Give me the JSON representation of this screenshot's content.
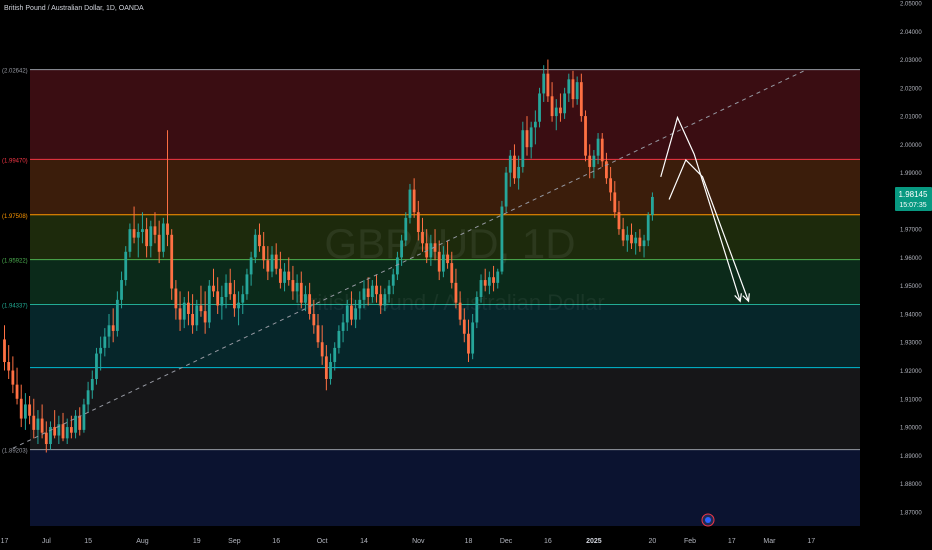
{
  "symbol": {
    "title": "British Pound / Australian Dollar, 1D, OANDA",
    "watermark_main": "GBPAUD, 1D",
    "watermark_sub": "British Pound / Australian Dollar"
  },
  "price_tag": {
    "price": "1.98145",
    "countdown": "15:07:35",
    "color": "#089981"
  },
  "chart_data": {
    "type": "candlestick",
    "y_axis": {
      "min": 1.865,
      "max": 2.05,
      "ticks": [
        "2.05000",
        "2.04000",
        "2.03000",
        "2.02000",
        "2.01000",
        "2.00000",
        "1.99000",
        "1.98000",
        "1.97000",
        "1.96000",
        "1.95000",
        "1.94000",
        "1.93000",
        "1.92000",
        "1.91000",
        "1.90000",
        "1.89000",
        "1.88000",
        "1.87000"
      ]
    },
    "x_axis": {
      "ticks": [
        {
          "label": "17",
          "index": 0
        },
        {
          "label": "Jul",
          "index": 10
        },
        {
          "label": "15",
          "index": 20
        },
        {
          "label": "Aug",
          "index": 33
        },
        {
          "label": "19",
          "index": 46
        },
        {
          "label": "Sep",
          "index": 55
        },
        {
          "label": "16",
          "index": 65
        },
        {
          "label": "Oct",
          "index": 76
        },
        {
          "label": "14",
          "index": 86
        },
        {
          "label": "Nov",
          "index": 99
        },
        {
          "label": "18",
          "index": 111
        },
        {
          "label": "Dec",
          "index": 120
        },
        {
          "label": "16",
          "index": 130
        },
        {
          "label": "2025",
          "index": 141
        },
        {
          "label": "20",
          "index": 155
        },
        {
          "label": "Feb",
          "index": 164
        },
        {
          "label": "17",
          "index": 174
        },
        {
          "label": "Mar",
          "index": 183
        },
        {
          "label": "17",
          "index": 193
        }
      ]
    },
    "fib_levels": [
      {
        "value": 2.02642,
        "label": "(2.02642)",
        "fill": "#3a0d12",
        "line": "#9598a1"
      },
      {
        "value": 1.9947,
        "label": "(1.99470)",
        "fill": "#3b1d0b",
        "line": "#f23645"
      },
      {
        "value": 1.97508,
        "label": "(1.97508)",
        "fill": "#1d2a0c",
        "line": "#ff9800"
      },
      {
        "value": 1.95922,
        "label": "(1.95922)",
        "fill": "#0b2a1a",
        "line": "#4caf50"
      },
      {
        "value": 1.94337,
        "label": "(1.94337)",
        "fill": "#06262a",
        "line": "#22ab94"
      },
      {
        "value": 1.921,
        "label": "",
        "fill": "#161618",
        "line": "#00bcd4"
      },
      {
        "value": 1.89203,
        "label": "(1.89203)",
        "fill": "#0b1330",
        "line": "#9598a1"
      }
    ],
    "trendline": {
      "start": {
        "index": 2,
        "value": 1.8925
      },
      "end": {
        "index": 192,
        "value": 2.0265
      }
    },
    "projection_arrows": [
      {
        "points": [
          [
            157,
            1.9885
          ],
          [
            161,
            2.0095
          ],
          [
            165,
            1.9965
          ],
          [
            176,
            1.9445
          ]
        ]
      },
      {
        "points": [
          [
            159,
            1.9805
          ],
          [
            163,
            1.9945
          ],
          [
            167,
            1.9885
          ],
          [
            178,
            1.9445
          ]
        ]
      }
    ],
    "ohlc": [
      [
        1.931,
        1.936,
        1.92,
        1.923
      ],
      [
        1.923,
        1.929,
        1.917,
        1.92
      ],
      [
        1.92,
        1.925,
        1.912,
        1.915
      ],
      [
        1.915,
        1.921,
        1.908,
        1.91
      ],
      [
        1.91,
        1.915,
        1.9,
        1.903
      ],
      [
        1.903,
        1.912,
        1.899,
        1.908
      ],
      [
        1.908,
        1.911,
        1.901,
        1.904
      ],
      [
        1.904,
        1.91,
        1.896,
        1.899
      ],
      [
        1.899,
        1.906,
        1.894,
        1.903
      ],
      [
        1.903,
        1.908,
        1.896,
        1.898
      ],
      [
        1.898,
        1.902,
        1.891,
        1.894
      ],
      [
        1.894,
        1.902,
        1.892,
        1.9
      ],
      [
        1.9,
        1.906,
        1.896,
        1.897
      ],
      [
        1.897,
        1.904,
        1.894,
        1.901
      ],
      [
        1.901,
        1.905,
        1.895,
        1.896
      ],
      [
        1.896,
        1.903,
        1.894,
        1.9
      ],
      [
        1.9,
        1.904,
        1.896,
        1.898
      ],
      [
        1.898,
        1.906,
        1.896,
        1.904
      ],
      [
        1.904,
        1.907,
        1.897,
        1.899
      ],
      [
        1.899,
        1.91,
        1.898,
        1.908
      ],
      [
        1.908,
        1.916,
        1.905,
        1.913
      ],
      [
        1.913,
        1.92,
        1.91,
        1.917
      ],
      [
        1.917,
        1.928,
        1.915,
        1.926
      ],
      [
        1.926,
        1.932,
        1.92,
        1.928
      ],
      [
        1.928,
        1.935,
        1.925,
        1.932
      ],
      [
        1.932,
        1.94,
        1.928,
        1.936
      ],
      [
        1.936,
        1.942,
        1.93,
        1.934
      ],
      [
        1.934,
        1.948,
        1.932,
        1.945
      ],
      [
        1.945,
        1.955,
        1.942,
        1.952
      ],
      [
        1.952,
        1.964,
        1.95,
        1.962
      ],
      [
        1.962,
        1.972,
        1.96,
        1.97
      ],
      [
        1.97,
        1.978,
        1.965,
        1.967
      ],
      [
        1.967,
        1.972,
        1.96,
        1.969
      ],
      [
        1.969,
        1.976,
        1.965,
        1.97
      ],
      [
        1.97,
        1.974,
        1.96,
        1.964
      ],
      [
        1.964,
        1.973,
        1.96,
        1.971
      ],
      [
        1.971,
        1.976,
        1.965,
        1.968
      ],
      [
        1.968,
        1.973,
        1.958,
        1.962
      ],
      [
        1.962,
        1.974,
        1.96,
        1.972
      ],
      [
        1.972,
        2.005,
        1.964,
        1.968
      ],
      [
        1.968,
        1.97,
        1.945,
        1.949
      ],
      [
        1.949,
        1.952,
        1.938,
        1.942
      ],
      [
        1.942,
        1.948,
        1.934,
        1.938
      ],
      [
        1.938,
        1.946,
        1.935,
        1.944
      ],
      [
        1.944,
        1.948,
        1.936,
        1.94
      ],
      [
        1.94,
        1.947,
        1.933,
        1.936
      ],
      [
        1.936,
        1.945,
        1.934,
        1.943
      ],
      [
        1.943,
        1.95,
        1.939,
        1.941
      ],
      [
        1.941,
        1.948,
        1.933,
        1.937
      ],
      [
        1.937,
        1.952,
        1.935,
        1.95
      ],
      [
        1.95,
        1.956,
        1.946,
        1.948
      ],
      [
        1.948,
        1.953,
        1.94,
        1.943
      ],
      [
        1.943,
        1.95,
        1.938,
        1.946
      ],
      [
        1.946,
        1.954,
        1.942,
        1.951
      ],
      [
        1.951,
        1.956,
        1.945,
        1.947
      ],
      [
        1.947,
        1.952,
        1.939,
        1.942
      ],
      [
        1.942,
        1.948,
        1.936,
        1.944
      ],
      [
        1.944,
        1.95,
        1.94,
        1.947
      ],
      [
        1.947,
        1.956,
        1.945,
        1.954
      ],
      [
        1.954,
        1.962,
        1.95,
        1.96
      ],
      [
        1.96,
        1.97,
        1.958,
        1.968
      ],
      [
        1.968,
        1.972,
        1.962,
        1.964
      ],
      [
        1.964,
        1.969,
        1.956,
        1.959
      ],
      [
        1.959,
        1.964,
        1.952,
        1.955
      ],
      [
        1.955,
        1.964,
        1.953,
        1.961
      ],
      [
        1.961,
        1.965,
        1.954,
        1.956
      ],
      [
        1.956,
        1.962,
        1.949,
        1.951
      ],
      [
        1.951,
        1.958,
        1.948,
        1.955
      ],
      [
        1.955,
        1.96,
        1.95,
        1.952
      ],
      [
        1.952,
        1.957,
        1.945,
        1.948
      ],
      [
        1.948,
        1.954,
        1.944,
        1.951
      ],
      [
        1.951,
        1.955,
        1.942,
        1.944
      ],
      [
        1.944,
        1.95,
        1.941,
        1.947
      ],
      [
        1.947,
        1.951,
        1.938,
        1.94
      ],
      [
        1.94,
        1.945,
        1.933,
        1.936
      ],
      [
        1.936,
        1.94,
        1.928,
        1.93
      ],
      [
        1.93,
        1.936,
        1.922,
        1.925
      ],
      [
        1.925,
        1.929,
        1.913,
        1.917
      ],
      [
        1.917,
        1.926,
        1.915,
        1.923
      ],
      [
        1.923,
        1.93,
        1.92,
        1.928
      ],
      [
        1.928,
        1.936,
        1.926,
        1.934
      ],
      [
        1.934,
        1.94,
        1.93,
        1.937
      ],
      [
        1.937,
        1.945,
        1.934,
        1.943
      ],
      [
        1.943,
        1.948,
        1.936,
        1.938
      ],
      [
        1.938,
        1.945,
        1.935,
        1.942
      ],
      [
        1.942,
        1.948,
        1.938,
        1.945
      ],
      [
        1.945,
        1.952,
        1.942,
        1.949
      ],
      [
        1.949,
        1.953,
        1.943,
        1.946
      ],
      [
        1.946,
        1.952,
        1.944,
        1.95
      ],
      [
        1.95,
        1.954,
        1.944,
        1.947
      ],
      [
        1.947,
        1.95,
        1.94,
        1.943
      ],
      [
        1.943,
        1.949,
        1.941,
        1.947
      ],
      [
        1.947,
        1.952,
        1.944,
        1.95
      ],
      [
        1.95,
        1.956,
        1.947,
        1.954
      ],
      [
        1.954,
        1.962,
        1.952,
        1.96
      ],
      [
        1.96,
        1.968,
        1.957,
        1.966
      ],
      [
        1.966,
        1.976,
        1.964,
        1.974
      ],
      [
        1.974,
        1.986,
        1.972,
        1.984
      ],
      [
        1.984,
        1.988,
        1.974,
        1.976
      ],
      [
        1.976,
        1.98,
        1.966,
        1.969
      ],
      [
        1.969,
        1.974,
        1.962,
        1.965
      ],
      [
        1.965,
        1.97,
        1.958,
        1.96
      ],
      [
        1.96,
        1.968,
        1.957,
        1.965
      ],
      [
        1.965,
        1.97,
        1.959,
        1.962
      ],
      [
        1.962,
        1.966,
        1.952,
        1.955
      ],
      [
        1.955,
        1.964,
        1.953,
        1.961
      ],
      [
        1.961,
        1.966,
        1.956,
        1.958
      ],
      [
        1.958,
        1.962,
        1.949,
        1.951
      ],
      [
        1.951,
        1.956,
        1.942,
        1.944
      ],
      [
        1.944,
        1.948,
        1.936,
        1.938
      ],
      [
        1.938,
        1.942,
        1.93,
        1.933
      ],
      [
        1.933,
        1.938,
        1.923,
        1.926
      ],
      [
        1.926,
        1.94,
        1.924,
        1.937
      ],
      [
        1.937,
        1.948,
        1.935,
        1.946
      ],
      [
        1.946,
        1.954,
        1.944,
        1.952
      ],
      [
        1.952,
        1.956,
        1.948,
        1.95
      ],
      [
        1.95,
        1.955,
        1.947,
        1.953
      ],
      [
        1.953,
        1.957,
        1.948,
        1.951
      ],
      [
        1.951,
        1.956,
        1.949,
        1.955
      ],
      [
        1.955,
        1.98,
        1.954,
        1.978
      ],
      [
        1.978,
        1.992,
        1.976,
        1.99
      ],
      [
        1.99,
        1.998,
        1.985,
        1.996
      ],
      [
        1.996,
        2.0,
        1.986,
        1.988
      ],
      [
        1.988,
        1.996,
        1.984,
        1.992
      ],
      [
        1.992,
        2.008,
        1.99,
        2.005
      ],
      [
        2.005,
        2.01,
        1.996,
        1.999
      ],
      [
        1.999,
        2.008,
        1.995,
        2.006
      ],
      [
        2.006,
        2.012,
        2.0,
        2.008
      ],
      [
        2.008,
        2.02,
        2.006,
        2.018
      ],
      [
        2.018,
        2.028,
        2.015,
        2.025
      ],
      [
        2.025,
        2.03,
        2.015,
        2.017
      ],
      [
        2.017,
        2.022,
        2.008,
        2.01
      ],
      [
        2.01,
        2.016,
        2.005,
        2.013
      ],
      [
        2.013,
        2.018,
        2.008,
        2.011
      ],
      [
        2.011,
        2.02,
        2.009,
        2.018
      ],
      [
        2.018,
        2.025,
        2.015,
        2.023
      ],
      [
        2.023,
        2.026,
        2.013,
        2.016
      ],
      [
        2.016,
        2.024,
        2.014,
        2.022
      ],
      [
        2.022,
        2.025,
        2.008,
        2.01
      ],
      [
        2.01,
        2.012,
        1.994,
        1.996
      ],
      [
        1.996,
        2.0,
        1.988,
        1.992
      ],
      [
        1.992,
        1.998,
        1.988,
        1.996
      ],
      [
        1.996,
        2.004,
        1.993,
        2.002
      ],
      [
        2.002,
        2.004,
        1.992,
        1.994
      ],
      [
        1.994,
        1.997,
        1.986,
        1.988
      ],
      [
        1.988,
        1.992,
        1.98,
        1.983
      ],
      [
        1.983,
        1.987,
        1.974,
        1.976
      ],
      [
        1.976,
        1.98,
        1.968,
        1.97
      ],
      [
        1.97,
        1.974,
        1.964,
        1.966
      ],
      [
        1.966,
        1.971,
        1.962,
        1.968
      ],
      [
        1.968,
        1.972,
        1.963,
        1.965
      ],
      [
        1.965,
        1.969,
        1.961,
        1.967
      ],
      [
        1.967,
        1.97,
        1.962,
        1.964
      ],
      [
        1.964,
        1.968,
        1.96,
        1.966
      ],
      [
        1.966,
        1.976,
        1.964,
        1.975
      ],
      [
        1.975,
        1.983,
        1.973,
        1.9814
      ]
    ]
  }
}
